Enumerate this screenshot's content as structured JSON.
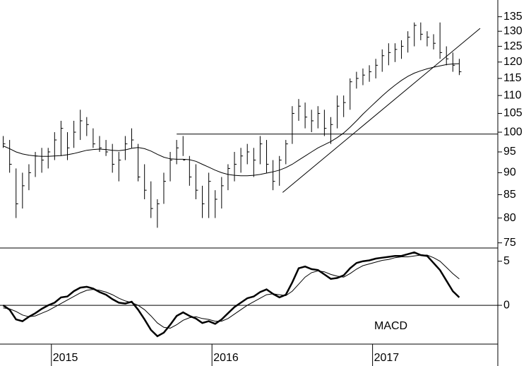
{
  "chart_data": [
    {
      "type": "ohlc",
      "log": true,
      "color": "#000000",
      "xlim": [
        2014.68,
        2017.78
      ],
      "ylim": [
        74,
        141
      ],
      "yticks": [
        75,
        80,
        85,
        90,
        95,
        100,
        105,
        110,
        115,
        120,
        125,
        130,
        135
      ],
      "x": [
        2014.7,
        2014.74,
        2014.78,
        2014.82,
        2014.86,
        2014.9,
        2014.94,
        2014.98,
        2015.02,
        2015.06,
        2015.1,
        2015.14,
        2015.18,
        2015.22,
        2015.26,
        2015.3,
        2015.34,
        2015.38,
        2015.42,
        2015.46,
        2015.5,
        2015.54,
        2015.58,
        2015.62,
        2015.66,
        2015.7,
        2015.74,
        2015.78,
        2015.82,
        2015.86,
        2015.9,
        2015.94,
        2015.98,
        2016.02,
        2016.06,
        2016.1,
        2016.14,
        2016.18,
        2016.22,
        2016.26,
        2016.3,
        2016.34,
        2016.38,
        2016.42,
        2016.46,
        2016.5,
        2016.54,
        2016.58,
        2016.62,
        2016.66,
        2016.7,
        2016.74,
        2016.78,
        2016.82,
        2016.86,
        2016.9,
        2016.94,
        2016.98,
        2017.02,
        2017.06,
        2017.1,
        2017.14,
        2017.18,
        2017.22,
        2017.26,
        2017.3,
        2017.34,
        2017.38,
        2017.42,
        2017.46,
        2017.5,
        2017.54
      ],
      "high": [
        99,
        98,
        91,
        90,
        92,
        95,
        96,
        96,
        100,
        103,
        100,
        103,
        106,
        104,
        101,
        99,
        98,
        97,
        95,
        99,
        101,
        97,
        92,
        88,
        84,
        90,
        95,
        98,
        99,
        94,
        92,
        87,
        90,
        86,
        89,
        92,
        95,
        96,
        97,
        96,
        99,
        98,
        93,
        94,
        98,
        107,
        109,
        108,
        106,
        107,
        106,
        104,
        110,
        110,
        115,
        117,
        118,
        119,
        121,
        124,
        126,
        126,
        127,
        130,
        133,
        133,
        130,
        129,
        133,
        125,
        123,
        121
      ],
      "low": [
        96,
        90,
        80,
        82,
        86,
        89,
        90,
        91,
        93,
        94,
        93,
        96,
        98,
        99,
        96,
        95,
        94,
        90,
        88,
        93,
        96,
        88,
        84,
        80,
        78,
        83,
        88,
        92,
        94,
        87,
        84,
        80,
        80,
        80,
        82,
        86,
        88,
        90,
        92,
        89,
        92,
        90,
        86,
        87,
        92,
        97,
        103,
        101,
        100,
        101,
        99,
        97,
        101,
        104,
        106,
        112,
        113,
        114,
        115,
        117,
        119,
        120,
        121,
        123,
        125,
        127,
        125,
        124,
        121,
        119,
        117,
        116
      ],
      "close": [
        97,
        92,
        83,
        87,
        90,
        94,
        93,
        95,
        98,
        101,
        96,
        100,
        103,
        102,
        97,
        96,
        95,
        92,
        93,
        97,
        98,
        89,
        86,
        82,
        83,
        88,
        93,
        96,
        93,
        89,
        86,
        83,
        88,
        84,
        87,
        91,
        92,
        94,
        95,
        93,
        97,
        92,
        88,
        93,
        97,
        105,
        107,
        104,
        103,
        105,
        101,
        102,
        107,
        108,
        114,
        115,
        116,
        117,
        119,
        122,
        123,
        124,
        125,
        128,
        132,
        129,
        128,
        126,
        123,
        121,
        119,
        117
      ],
      "moving_average": [
        96.5,
        95.8,
        95.0,
        94.5,
        94.2,
        94.0,
        93.9,
        93.9,
        94.0,
        94.1,
        94.3,
        94.6,
        95.0,
        95.4,
        95.6,
        95.7,
        95.6,
        95.4,
        95.3,
        95.5,
        95.9,
        96.1,
        95.8,
        95.2,
        94.4,
        93.7,
        93.3,
        93.2,
        93.2,
        93.1,
        92.7,
        92.0,
        91.3,
        90.6,
        90.0,
        89.6,
        89.4,
        89.3,
        89.3,
        89.4,
        89.6,
        89.9,
        90.2,
        90.6,
        91.2,
        92.0,
        93.0,
        94.0,
        95.0,
        96.0,
        96.8,
        97.6,
        98.6,
        99.8,
        101.3,
        103.0,
        104.8,
        106.5,
        108.2,
        109.9,
        111.5,
        113.0,
        114.4,
        115.6,
        116.6,
        117.3,
        117.9,
        118.4,
        118.8,
        119.2,
        119.4,
        119.5
      ],
      "lines": [
        {
          "x": [
            2015.78,
            2017.78
          ],
          "values": [
            99.5,
            99.5
          ]
        },
        {
          "x": [
            2016.44,
            2017.67
          ],
          "values": [
            85.5,
            131
          ]
        }
      ]
    },
    {
      "type": "line",
      "annotation": "MACD",
      "color": "#000000",
      "xlim": [
        2014.68,
        2017.78
      ],
      "ylim": [
        -4.4,
        6.5
      ],
      "yticks": [
        0,
        5
      ],
      "xticks": [
        2015,
        2016,
        2017
      ],
      "series": [
        {
          "values": [
            0.0,
            -0.5,
            -1.6,
            -1.8,
            -1.3,
            -0.9,
            -0.4,
            0.0,
            0.3,
            0.9,
            1.0,
            1.6,
            2.0,
            2.1,
            1.9,
            1.5,
            1.2,
            0.7,
            0.3,
            0.2,
            0.4,
            -0.5,
            -1.6,
            -2.8,
            -3.5,
            -3.1,
            -2.2,
            -1.2,
            -0.8,
            -1.2,
            -1.5,
            -2.0,
            -1.8,
            -2.1,
            -1.6,
            -0.9,
            -0.2,
            0.3,
            0.8,
            1.0,
            1.5,
            1.8,
            1.3,
            0.9,
            1.2,
            2.6,
            4.2,
            4.4,
            4.1,
            4.0,
            3.5,
            3.0,
            3.1,
            3.4,
            4.2,
            4.8,
            5.0,
            5.1,
            5.3,
            5.4,
            5.5,
            5.6,
            5.6,
            5.8,
            6.0,
            5.7,
            5.6,
            4.8,
            4.0,
            2.8,
            1.6,
            0.9
          ]
        },
        {
          "values": [
            -0.3,
            -0.4,
            -0.7,
            -1.1,
            -1.3,
            -1.2,
            -0.9,
            -0.6,
            -0.2,
            0.2,
            0.6,
            1.0,
            1.4,
            1.7,
            1.8,
            1.7,
            1.5,
            1.2,
            0.8,
            0.5,
            0.3,
            0.0,
            -0.5,
            -1.2,
            -2.0,
            -2.5,
            -2.6,
            -2.2,
            -1.7,
            -1.4,
            -1.3,
            -1.5,
            -1.6,
            -1.8,
            -1.8,
            -1.5,
            -1.0,
            -0.5,
            0.0,
            0.4,
            0.8,
            1.2,
            1.3,
            1.2,
            1.1,
            1.6,
            2.4,
            3.2,
            3.7,
            3.9,
            3.8,
            3.5,
            3.3,
            3.2,
            3.6,
            4.1,
            4.5,
            4.7,
            4.9,
            5.1,
            5.2,
            5.4,
            5.5,
            5.5,
            5.6,
            5.7,
            5.7,
            5.4,
            5.0,
            4.3,
            3.6,
            3.0
          ]
        }
      ]
    }
  ]
}
